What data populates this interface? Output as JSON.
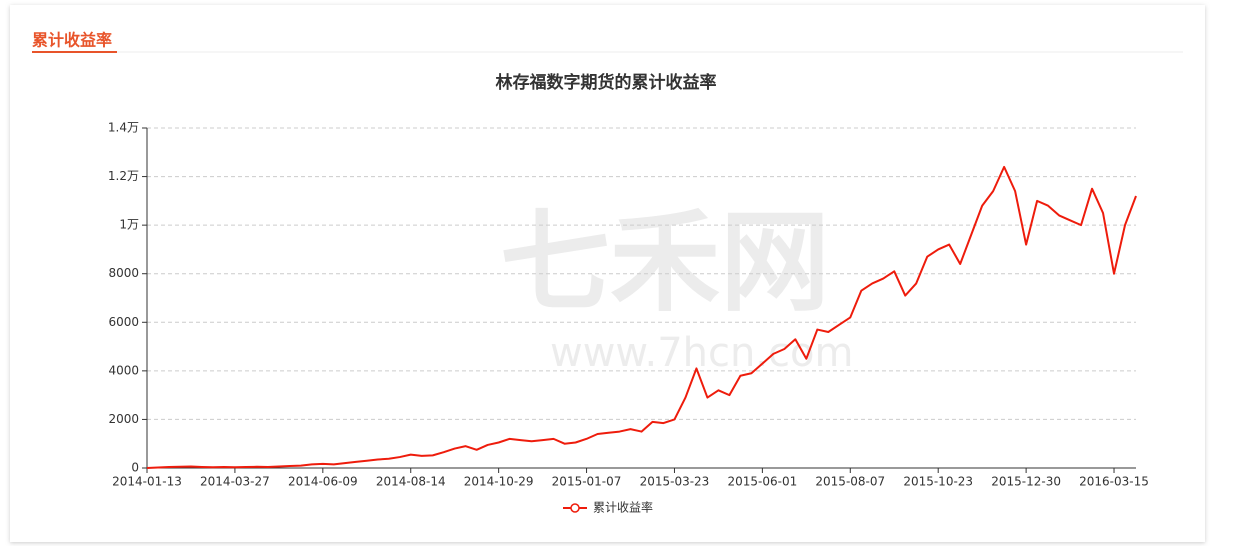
{
  "header": {
    "title": "累计收益率"
  },
  "watermark": {
    "logo": "七禾网",
    "url": "www.7hcn.com"
  },
  "chart_data": {
    "type": "line",
    "title": "林存福数字期货的累计收益率",
    "categories": [
      "2014-01-13",
      null,
      null,
      null,
      null,
      null,
      null,
      null,
      "2014-03-27",
      null,
      null,
      null,
      null,
      null,
      null,
      null,
      "2014-06-09",
      null,
      null,
      null,
      null,
      null,
      null,
      null,
      "2014-08-14",
      null,
      null,
      null,
      null,
      null,
      null,
      null,
      "2014-10-29",
      null,
      null,
      null,
      null,
      null,
      null,
      null,
      "2015-01-07",
      null,
      null,
      null,
      null,
      null,
      null,
      null,
      "2015-03-23",
      null,
      null,
      null,
      null,
      null,
      null,
      null,
      "2015-06-01",
      null,
      null,
      null,
      null,
      null,
      null,
      null,
      "2015-08-07",
      null,
      null,
      null,
      null,
      null,
      null,
      null,
      "2015-10-23",
      null,
      null,
      null,
      null,
      null,
      null,
      null,
      "2015-12-30",
      null,
      null,
      null,
      null,
      null,
      null,
      null,
      "2016-03-15",
      null,
      null
    ],
    "series": [
      {
        "name": "累计收益率",
        "color": "#ee1c0c",
        "values": [
          0,
          20,
          40,
          50,
          60,
          40,
          30,
          40,
          30,
          40,
          50,
          40,
          60,
          80,
          100,
          150,
          170,
          150,
          200,
          250,
          300,
          350,
          380,
          450,
          550,
          500,
          520,
          650,
          800,
          900,
          750,
          950,
          1050,
          1200,
          1150,
          1100,
          1150,
          1200,
          1000,
          1050,
          1200,
          1400,
          1450,
          1500,
          1600,
          1500,
          1900,
          1850,
          2000,
          2900,
          4100,
          2900,
          3200,
          3000,
          3800,
          3900,
          4300,
          4700,
          4900,
          5300,
          4500,
          5700,
          5600,
          5900,
          6200,
          7300,
          7600,
          7800,
          8100,
          7100,
          7600,
          8700,
          9000,
          9200,
          8400,
          9600,
          10800,
          11400,
          12400,
          11400,
          9200,
          11000,
          10800,
          10400,
          10200,
          10000,
          11500,
          10500,
          8000,
          10000,
          11200
        ]
      }
    ],
    "ylim": [
      0,
      14000
    ],
    "yticks": [
      0,
      2000,
      4000,
      6000,
      8000,
      {
        "value": 10000,
        "label": "1万"
      },
      {
        "value": 12000,
        "label": "1.2万"
      },
      {
        "value": 14000,
        "label": "1.4万"
      }
    ],
    "grid": true,
    "legend": "bottom"
  }
}
